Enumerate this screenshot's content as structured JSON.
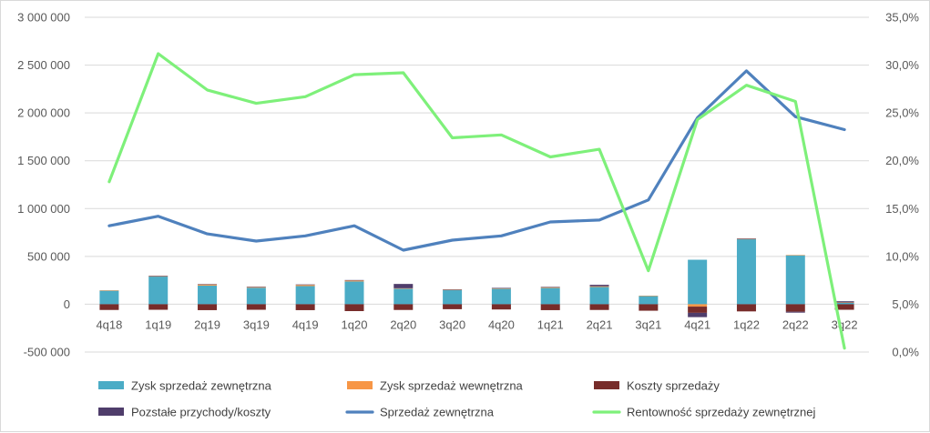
{
  "chart_data": {
    "type": "bar",
    "stacked": true,
    "categories": [
      "4q18",
      "1q19",
      "2q19",
      "3q19",
      "4q19",
      "1q20",
      "2q20",
      "3q20",
      "4q20",
      "1q21",
      "2q21",
      "3q21",
      "4q21",
      "1q22",
      "2q22",
      "3q22"
    ],
    "series": [
      {
        "name": "Zysk sprzedaż zewnętrzna",
        "type": "bar",
        "axis": "left",
        "color": "#4bacc6",
        "values": [
          143000,
          290000,
          195000,
          172000,
          190000,
          238000,
          162000,
          148000,
          163000,
          170000,
          180000,
          87000,
          465000,
          680000,
          512000,
          17000
        ]
      },
      {
        "name": "Zysk sprzedaż wewnętrzna",
        "type": "bar",
        "axis": "left",
        "color": "#f79646",
        "values": [
          2000,
          3000,
          12000,
          8000,
          12000,
          10000,
          5000,
          3000,
          3000,
          8000,
          8000,
          2000,
          -25000,
          3000,
          3000,
          2000
        ]
      },
      {
        "name": "Koszty sprzedaży",
        "type": "bar",
        "axis": "left",
        "color": "#772c2a",
        "values": [
          -60000,
          -58000,
          -62000,
          -58000,
          -62000,
          -72000,
          -60000,
          -52000,
          -55000,
          -62000,
          -60000,
          -68000,
          -65000,
          -75000,
          -78000,
          -58000
        ]
      },
      {
        "name": "Pozstałe przychody/koszty",
        "type": "bar",
        "axis": "left",
        "color": "#4f3d6b",
        "values": [
          0,
          5000,
          4000,
          3000,
          5000,
          5000,
          45000,
          4000,
          5000,
          4000,
          15000,
          0,
          -45000,
          5000,
          -10000,
          12000
        ]
      },
      {
        "name": "Sprzedaż zewnętrzna",
        "type": "line",
        "axis": "left",
        "color": "#4f81bd",
        "values": [
          820000,
          920000,
          735000,
          660000,
          715000,
          820000,
          565000,
          670000,
          715000,
          860000,
          880000,
          1090000,
          1950000,
          2440000,
          1960000,
          1825000
        ]
      },
      {
        "name": "Rentowność sprzedaży zewnętrznej",
        "type": "line",
        "axis": "right",
        "color": "#7ef07a",
        "values": [
          17.8,
          31.2,
          27.4,
          26.0,
          26.7,
          29.0,
          29.2,
          22.4,
          22.7,
          20.4,
          21.2,
          8.5,
          24.3,
          27.9,
          26.2,
          0.4
        ]
      }
    ],
    "y_left": {
      "min": -500000,
      "max": 3000000,
      "step": 500000,
      "tick_labels": [
        "-500 000",
        "0",
        "500 000",
        "1 000 000",
        "1 500 000",
        "2 000 000",
        "2 500 000",
        "3 000 000"
      ]
    },
    "y_right": {
      "min": 0,
      "max": 35,
      "step": 5,
      "tick_labels": [
        "0,0%",
        "5,0%",
        "10,0%",
        "15,0%",
        "20,0%",
        "25,0%",
        "30,0%",
        "35,0%"
      ]
    },
    "grid": true,
    "legend_position": "bottom"
  }
}
